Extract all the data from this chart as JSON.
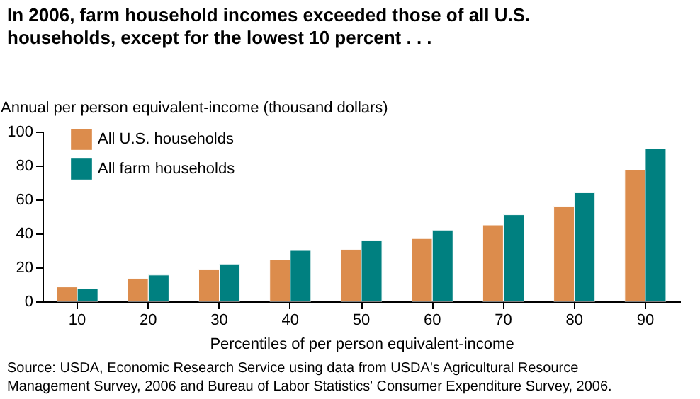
{
  "chart_data": {
    "type": "bar",
    "title": "In 2006, farm household incomes exceeded those of all U.S. households, except for the lowest 10 percent . . .",
    "ylabel": "Annual per person equivalent-income (thousand dollars)",
    "xlabel": "Percentiles of per person equivalent-income",
    "categories": [
      "10",
      "20",
      "30",
      "40",
      "50",
      "60",
      "70",
      "80",
      "90"
    ],
    "series": [
      {
        "name": "All U.S. households",
        "color": "#dc8c4c",
        "values": [
          8.5,
          13.5,
          19,
          24.5,
          30.5,
          37,
          45,
          56,
          77.5
        ]
      },
      {
        "name": "All farm households",
        "color": "#008080",
        "values": [
          7.5,
          15.5,
          22,
          30,
          36,
          42,
          51,
          64,
          90
        ]
      }
    ],
    "ylim": [
      0,
      100
    ],
    "yticks": [
      0,
      20,
      40,
      60,
      80,
      100
    ],
    "grid": false,
    "legend": "top left",
    "annotations": [
      "Source:  USDA, Economic Research Service using data from USDA's Agricultural Resource Management Survey, 2006 and Bureau of Labor Statistics' Consumer Expenditure Survey, 2006."
    ]
  }
}
